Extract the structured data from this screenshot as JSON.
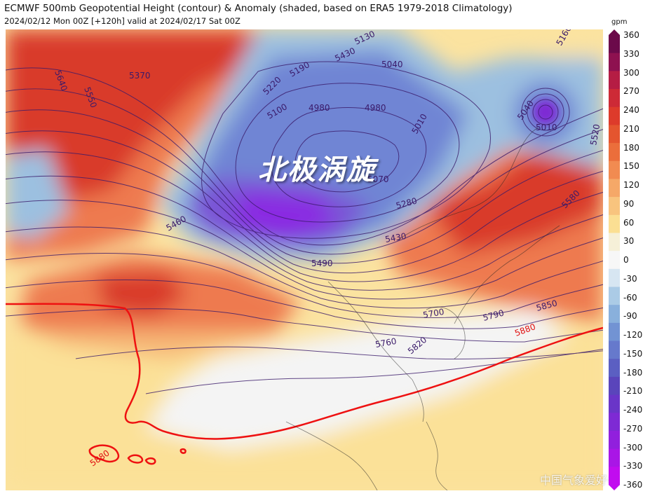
{
  "header": {
    "title": "ECMWF 500mb Geopotential Height (contour) & Anomaly (shaded, based on ERA5 1979-2018 Climatology)",
    "subtitle": "2024/02/12 Mon 00Z [+120h] valid at 2024/02/17 Sat 00Z"
  },
  "map": {
    "stamp": "北极涡旋",
    "watermark": "中国气象爱好者",
    "contour_labels": [
      {
        "text": "5640"
      },
      {
        "text": "5550"
      },
      {
        "text": "5370"
      },
      {
        "text": "5220"
      },
      {
        "text": "5190"
      },
      {
        "text": "5430"
      },
      {
        "text": "5130"
      },
      {
        "text": "5040"
      },
      {
        "text": "5100"
      },
      {
        "text": "4980"
      },
      {
        "text": "4980"
      },
      {
        "text": "5010"
      },
      {
        "text": "5160"
      },
      {
        "text": "5040"
      },
      {
        "text": "5010"
      },
      {
        "text": "5520"
      },
      {
        "text": "5070"
      },
      {
        "text": "5280"
      },
      {
        "text": "5580"
      },
      {
        "text": "5460"
      },
      {
        "text": "5430"
      },
      {
        "text": "5490"
      },
      {
        "text": "5700"
      },
      {
        "text": "5790"
      },
      {
        "text": "5850"
      },
      {
        "text": "5760"
      },
      {
        "text": "5820"
      }
    ],
    "red_contour_label": "5880",
    "colors": {
      "ridge_strong": "#d93a2c",
      "ridge_mid": "#ee7a4f",
      "ridge_weak": "#f6c98a",
      "neutral": "#f2f2f2",
      "trough_weak": "#9cc0e0",
      "trough_mid": "#6f85d4",
      "trough_core": "#8a2be2",
      "contour": "#3a1a6a",
      "contour_5880": "#ee1111"
    }
  },
  "colorbar": {
    "unit": "gpm",
    "ticks": [
      "360",
      "330",
      "300",
      "270",
      "240",
      "210",
      "180",
      "150",
      "120",
      "90",
      "60",
      "30",
      "0",
      "-30",
      "-60",
      "-90",
      "-120",
      "-150",
      "-180",
      "-210",
      "-240",
      "-270",
      "-300",
      "-330",
      "-360"
    ],
    "colors": [
      "#6b0a4a",
      "#8e1150",
      "#b51d44",
      "#cd2a36",
      "#dd3b2b",
      "#e4552f",
      "#eb6e3b",
      "#f18b51",
      "#f5a868",
      "#f8c47e",
      "#fbdf93",
      "#f6f0d8",
      "#f7f7f7",
      "#d7e6f2",
      "#abcbe6",
      "#89b0dc",
      "#7293d3",
      "#6679cc",
      "#5b5fc2",
      "#5a45bb",
      "#6a35c8",
      "#7e2ad4",
      "#9120dd",
      "#a916e6",
      "#c10cef"
    ]
  }
}
